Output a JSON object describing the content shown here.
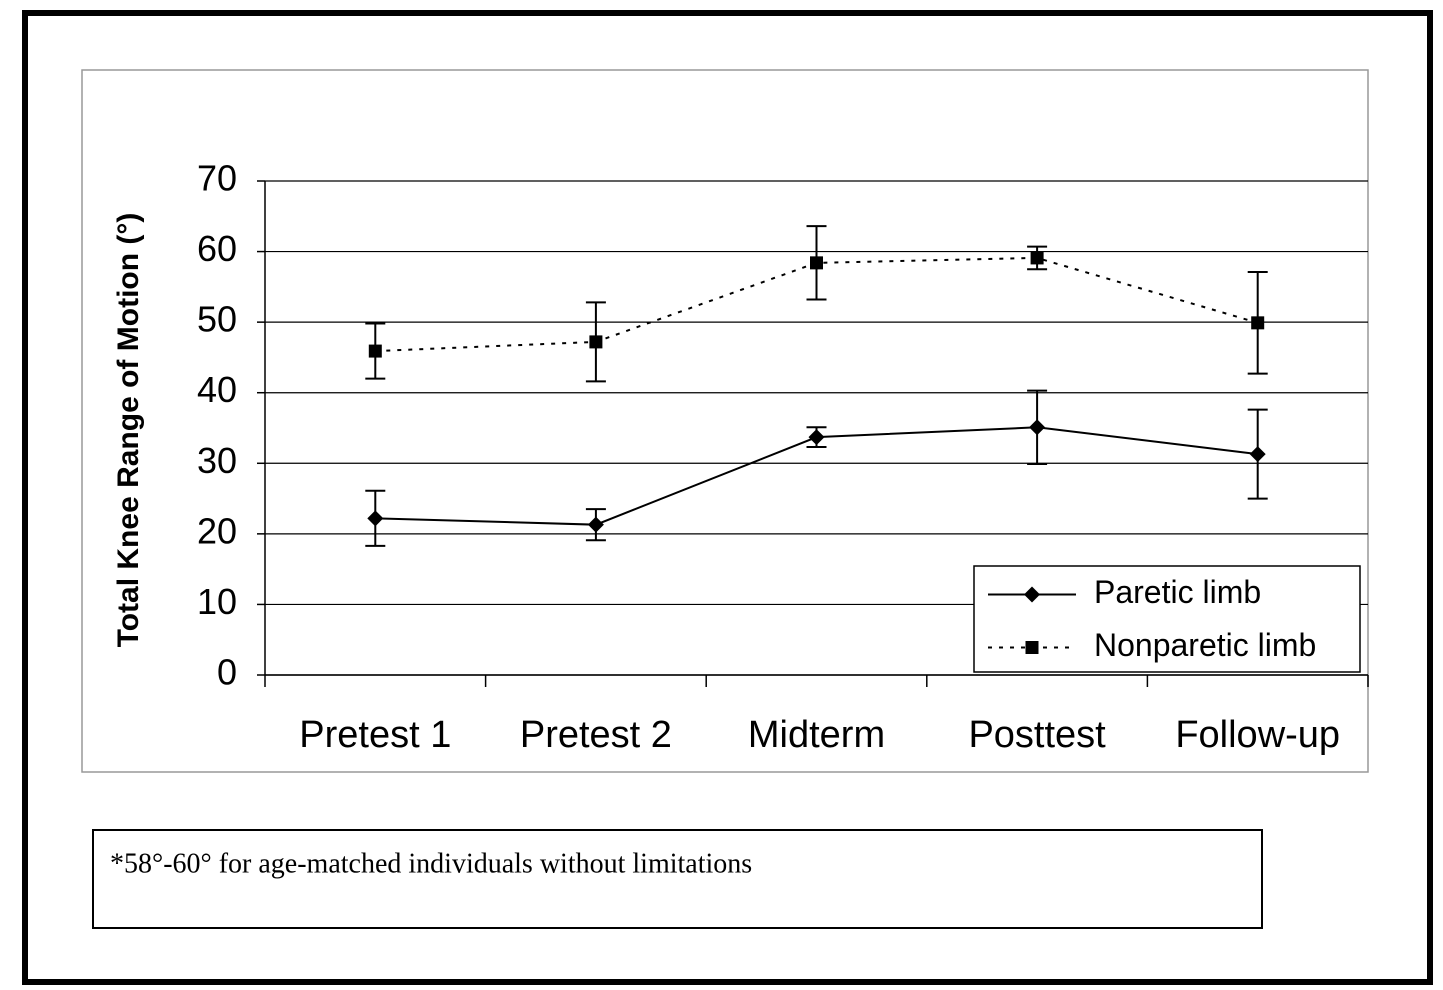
{
  "chart_data": {
    "type": "line",
    "y_label": "Total Knee Range of Motion (°)",
    "categories": [
      "Pretest 1",
      "Pretest 2",
      "Midterm",
      "Posttest",
      "Follow-up"
    ],
    "series": [
      {
        "name": "Paretic limb",
        "color": "#000000",
        "line_style": "solid",
        "marker": "diamond",
        "values": [
          22.2,
          21.3,
          33.7,
          35.1,
          31.3
        ],
        "errors": [
          3.9,
          2.2,
          1.4,
          5.2,
          6.3
        ]
      },
      {
        "name": "Nonparetic limb",
        "color": "#000000",
        "line_style": "dotted",
        "marker": "square",
        "values": [
          45.9,
          47.2,
          58.4,
          59.1,
          49.9
        ],
        "errors": [
          3.9,
          5.6,
          5.2,
          1.6,
          7.2
        ]
      }
    ],
    "ylim": [
      0,
      70
    ],
    "yticks": [
      0,
      10,
      20,
      30,
      40,
      50,
      60,
      70
    ],
    "grid": true,
    "legend": "lower right",
    "annotation": "*58°-60° for age-matched individuals without limitations"
  }
}
